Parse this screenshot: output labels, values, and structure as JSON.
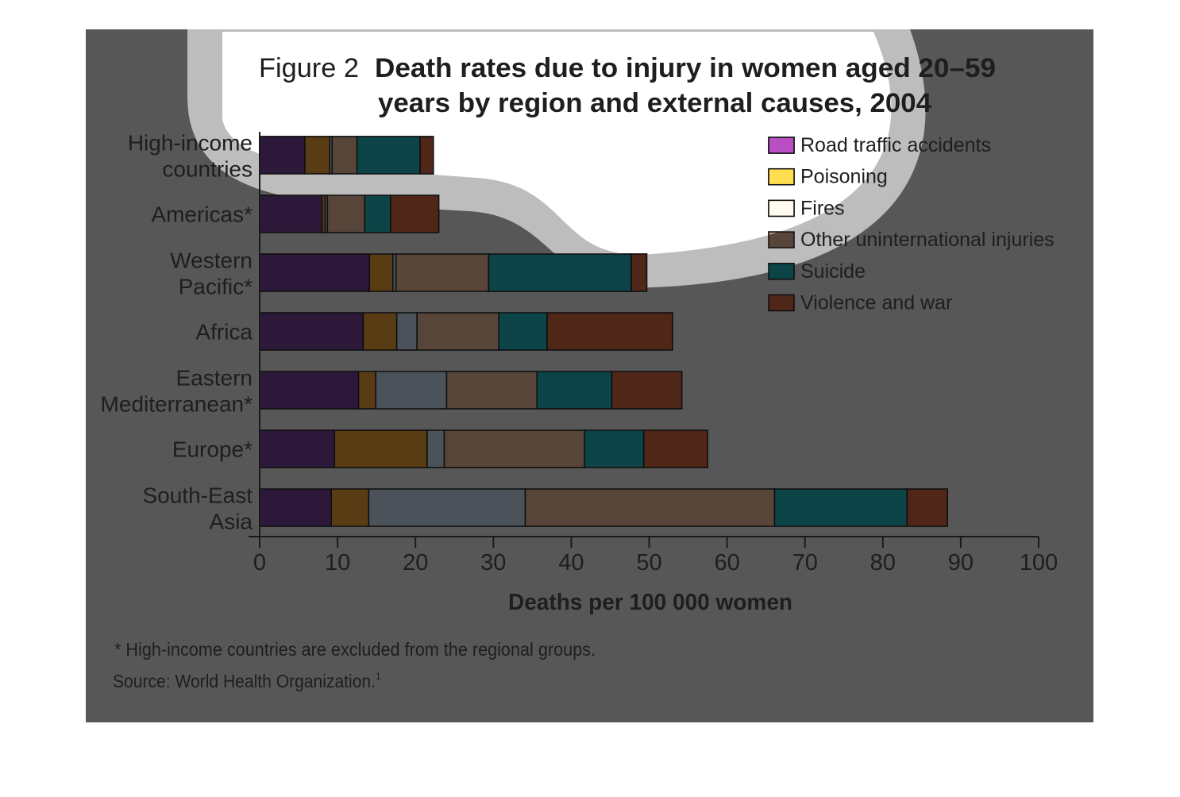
{
  "figure": {
    "label": "Figure 2",
    "title_line1": "Death rates due to injury in women aged 20–59",
    "title_line2": "years by region and external causes, 2004",
    "footnote": "* High-income countries are excluded from the regional groups.",
    "source": "Source: World Health Organization.",
    "source_ref": "1"
  },
  "colors": {
    "background": "#575757",
    "spotlight": "#ffffff",
    "halo": "#bdbdbd"
  },
  "chart_data": {
    "type": "bar",
    "orientation": "horizontal",
    "stacked": true,
    "title": "Death rates due to injury in women aged 20–59 years by region and external causes, 2004",
    "xlabel": "Deaths per 100 000 women",
    "ylabel": "",
    "xlim": [
      0,
      100
    ],
    "xticks": [
      0,
      10,
      20,
      30,
      40,
      50,
      60,
      70,
      80,
      90,
      100
    ],
    "legend_position": "top-right",
    "grid": false,
    "categories": [
      [
        "High-income",
        "countries"
      ],
      [
        "Americas*"
      ],
      [
        "Western",
        "Pacific*"
      ],
      [
        "Africa"
      ],
      [
        "Eastern",
        "Mediterranean*"
      ],
      [
        "Europe*"
      ],
      [
        "South-East",
        "Asia"
      ]
    ],
    "series": [
      {
        "name": "Road traffic accidents",
        "color": "#b84fc4",
        "dim_color": "#2c1838",
        "values": [
          5.8,
          8.0,
          14.1,
          13.3,
          12.7,
          9.6,
          9.2
        ]
      },
      {
        "name": "Poisoning",
        "color": "#ffdf4f",
        "dim_color": "#5a3c14",
        "values": [
          3.2,
          0.4,
          3.0,
          4.3,
          2.2,
          11.9,
          4.8
        ]
      },
      {
        "name": "Fires",
        "color": "#fffbf0",
        "dim_color": "#4b525a",
        "values": [
          0.3,
          0.3,
          0.4,
          2.6,
          9.1,
          2.2,
          20.1
        ]
      },
      {
        "name": "Other uninternational injuries",
        "color": "#b89a80",
        "dim_color": "#574539",
        "values": [
          3.2,
          4.8,
          11.9,
          10.5,
          11.6,
          18.0,
          32.0
        ]
      },
      {
        "name": "Suicide",
        "color": "#00e8f0",
        "dim_color": "#0c4448",
        "values": [
          8.1,
          3.3,
          18.3,
          6.2,
          9.6,
          7.6,
          17.0
        ]
      },
      {
        "name": "Violence and war",
        "color": "#f6a85f",
        "dim_color": "#4f2618",
        "values": [
          1.7,
          6.2,
          2.0,
          16.1,
          9.0,
          8.2,
          5.2
        ]
      }
    ]
  }
}
